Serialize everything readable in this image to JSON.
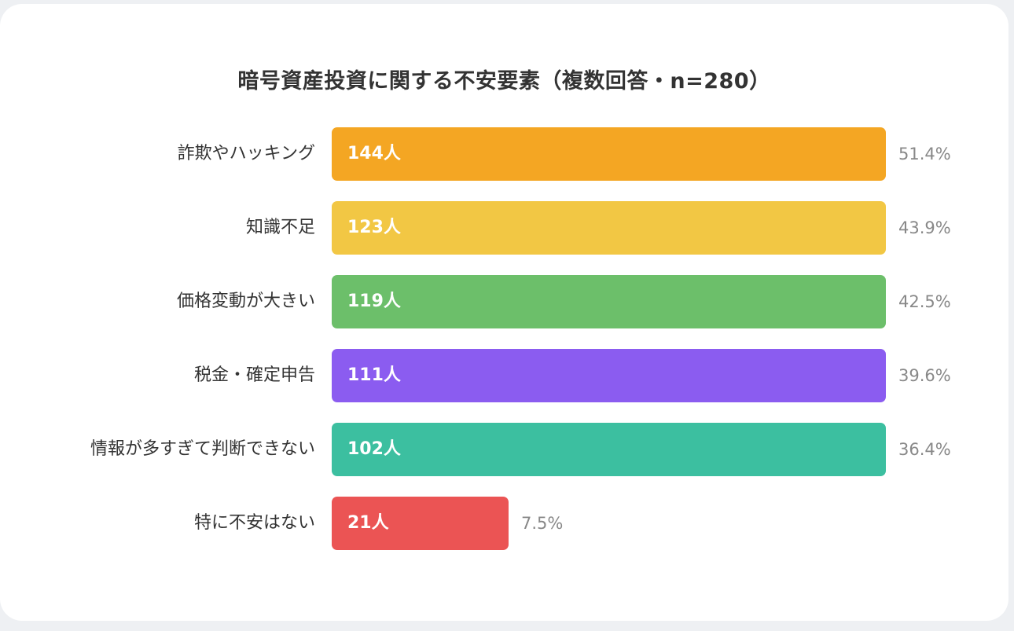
{
  "chart_data": {
    "type": "bar",
    "orientation": "horizontal",
    "title": "暗号資産投資に関する不安要素（複数回答・n=280）",
    "categories": [
      "詐欺やハッキング",
      "知識不足",
      "価格変動が大きい",
      "税金・確定申告",
      "情報が多すぎて判断できない",
      "特に不安はない"
    ],
    "values": [
      144,
      123,
      119,
      111,
      102,
      21
    ],
    "percentages": [
      51.4,
      43.9,
      42.5,
      39.6,
      36.4,
      7.5
    ],
    "colors": [
      "#F4A623",
      "#F2C744",
      "#6CBF6A",
      "#8B5CF0",
      "#3CBFA0",
      "#EB5454"
    ],
    "unit": "人",
    "n": 280,
    "xlabel": "",
    "ylabel": "",
    "grid": false,
    "legend": false
  },
  "title": "暗号資産投資に関する不安要素（複数回答・n=280）",
  "rows": [
    {
      "label": "詐欺やハッキング",
      "count": "144人",
      "pct": "51.4%",
      "color": "#F4A623"
    },
    {
      "label": "知識不足",
      "count": "123人",
      "pct": "43.9%",
      "color": "#F2C744"
    },
    {
      "label": "価格変動が大きい",
      "count": "119人",
      "pct": "42.5%",
      "color": "#6CBF6A"
    },
    {
      "label": "税金・確定申告",
      "count": "111人",
      "pct": "39.6%",
      "color": "#8B5CF0"
    },
    {
      "label": "情報が多すぎて判断できない",
      "count": "102人",
      "pct": "36.4%",
      "color": "#3CBFA0"
    },
    {
      "label": "特に不安はない",
      "count": "21人",
      "pct": "7.5%",
      "color": "#EB5454"
    }
  ]
}
